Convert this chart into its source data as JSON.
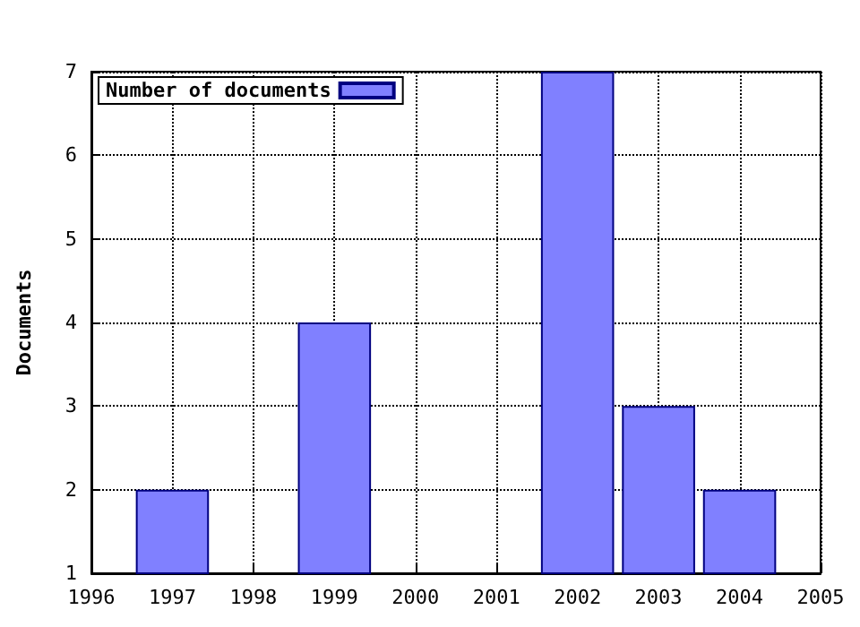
{
  "chart_data": {
    "type": "bar",
    "ylabel": "Documents",
    "x": [
      1997,
      1999,
      2002,
      2003,
      2004
    ],
    "series": [
      {
        "name": "Number of documents",
        "color": "#8080ff",
        "values": [
          2,
          4,
          7,
          3,
          2
        ]
      }
    ],
    "xlim": [
      1996,
      2005
    ],
    "xticks": [
      1996,
      1997,
      1998,
      1999,
      2000,
      2001,
      2002,
      2003,
      2004,
      2005
    ],
    "ylim": [
      1,
      7
    ],
    "yticks": [
      1,
      2,
      3,
      4,
      5,
      6,
      7
    ],
    "grid": true,
    "legend": "top left"
  }
}
